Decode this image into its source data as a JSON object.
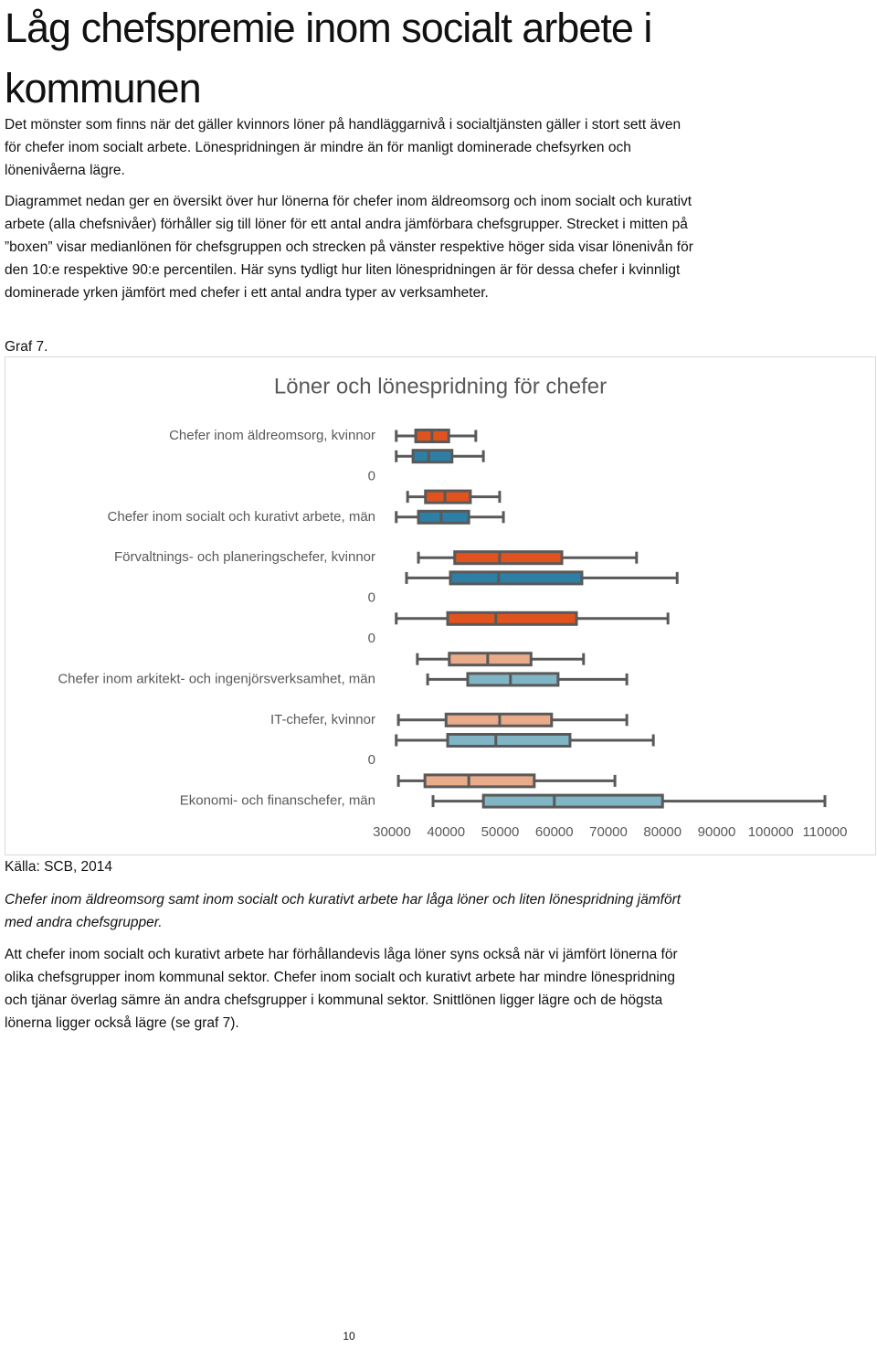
{
  "header": {
    "title": "Låg chefspremie inom socialt arbete i kommunen"
  },
  "paragraphs": [
    "Det mönster som finns när det gäller kvinnors löner på handläggarnivå i socialtjänsten gäller i stort sett även för chefer inom socialt arbete. Lönespridningen är mindre än för manligt dominerade chefsyrken och lönenivåerna lägre.",
    "Diagrammet nedan ger en översikt över hur lönerna för chefer inom äldreomsorg och inom socialt och kurativt arbete (alla chefsnivåer) förhåller sig till löner för ett antal andra jämförbara chefsgrupper. Strecket i mitten på ”boxen” visar medianlönen för chefsgruppen och strecken på vänster respektive höger sida visar lönenivån för den 10:e respektive 90:e percentilen. Här syns tydligt hur liten lönespridningen är för dessa chefer i kvinnligt dominerade yrken jämfört med chefer i ett antal andra typer av verksamheter."
  ],
  "figure_label": "Graf 7.",
  "source": "Källa: SCB, 2014",
  "caption": "Chefer inom äldreomsorg samt inom socialt och kurativt arbete har låga löner och liten lönespridning jämfört med andra chefsgrupper.",
  "closing": "Att chefer inom socialt och kurativt arbete har förhållandevis låga löner syns också när vi jämfört lönerna för olika chefsgrupper inom kommunal sektor. Chefer inom socialt och kurativt arbete har mindre lönespridning och tjänar överlag sämre än andra chefsgrupper i kommunal sektor. Snittlönen ligger lägre och de högsta lönerna ligger också lägre (se graf 7).",
  "page_number": "10",
  "chart_data": {
    "type": "boxplot",
    "title": "Löner och lönespridning för chefer",
    "categories": [
      "Chefer inom äldreomsorg, kvinnor",
      null,
      "0",
      null,
      "Chefer inom socialt och kurativt arbete, män",
      null,
      "Förvaltnings- och planeringschefer, kvinnor",
      null,
      "0",
      null,
      "0",
      null,
      "Chefer inom arkitekt- och ingenjörsverksamhet, män",
      null,
      "IT-chefer, kvinnor",
      null,
      "0",
      null,
      "Ekonomi- och finanschefer, män"
    ],
    "min": [
      30800,
      30800,
      null,
      32900,
      30800,
      null,
      34900,
      32700,
      null,
      30800,
      null,
      34700,
      36600,
      null,
      31200,
      30800,
      null,
      31200,
      37600
    ],
    "q1": [
      34400,
      33900,
      null,
      36200,
      34900,
      null,
      41600,
      40800,
      null,
      40300,
      null,
      40600,
      44000,
      null,
      40000,
      40300,
      null,
      36100,
      46900
    ],
    "median": [
      37400,
      36800,
      null,
      39800,
      39100,
      null,
      49900,
      49700,
      null,
      49200,
      null,
      47700,
      51900,
      null,
      49900,
      49200,
      null,
      44200,
      60000
    ],
    "q3": [
      40500,
      41100,
      null,
      44500,
      44200,
      null,
      61400,
      65100,
      null,
      64100,
      null,
      55700,
      60700,
      null,
      59500,
      62900,
      null,
      56300,
      80000
    ],
    "max": [
      45500,
      46900,
      null,
      49900,
      50600,
      null,
      75200,
      82700,
      null,
      81000,
      null,
      65400,
      73400,
      null,
      73400,
      78300,
      null,
      71200,
      110000
    ],
    "colors": [
      "#e0531f",
      "#2e7fa6",
      null,
      "#e0531f",
      "#2e7fa6",
      null,
      "#e0531f",
      "#2e7fa6",
      null,
      "#e0531f",
      null,
      "#e9ab89",
      "#80b5c6",
      null,
      "#e9ab89",
      "#80b5c6",
      null,
      "#e9ab89",
      "#80b5c6"
    ],
    "xlim": [
      30000,
      110000
    ],
    "xticks": [
      30000,
      40000,
      50000,
      60000,
      70000,
      80000,
      90000,
      100000,
      110000
    ],
    "grid": false
  }
}
